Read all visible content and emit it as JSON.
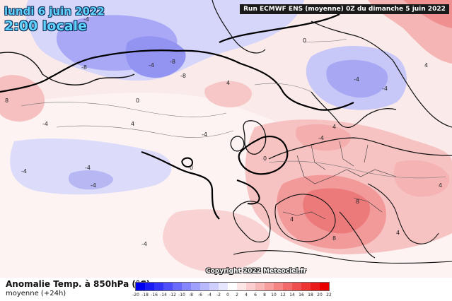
{
  "header": {
    "date": "lundi 6 juin 2022",
    "time": "2:00 locale",
    "run": "Run ECMWF ENS (moyenne) 0Z du dimanche 5 juin 2022"
  },
  "copyright": "Copyright 2022 Meteociel.fr",
  "legend": {
    "title": "Anomalie Temp. à 850hPa (°C)",
    "subtitle": "moyenne  (+24h)",
    "scale_ticks": [
      "-20",
      "-18",
      "-16",
      "-14",
      "-12",
      "-10",
      "-8",
      "-6",
      "-4",
      "-2",
      "0",
      "2",
      "4",
      "6",
      "8",
      "10",
      "12",
      "14",
      "16",
      "18",
      "20",
      "22"
    ],
    "colors": [
      "#0000f0",
      "#1a1af5",
      "#3333f8",
      "#4f4ffa",
      "#6a6afb",
      "#8585fc",
      "#9f9ffc",
      "#b8b8fd",
      "#cfcffd",
      "#e6e6fe",
      "#ffffff",
      "#fde6e6",
      "#fbcfcf",
      "#f9b8b8",
      "#f79f9f",
      "#f58585",
      "#f36a6a",
      "#f04f4f",
      "#ee3333",
      "#eb1a1a",
      "#e80000"
    ]
  },
  "contour_labels": [
    {
      "text": "-4",
      "id": "a"
    },
    {
      "text": "-8",
      "id": "b"
    },
    {
      "text": "-8",
      "id": "c"
    },
    {
      "text": "-8",
      "id": "d"
    },
    {
      "text": "-4",
      "id": "e"
    },
    {
      "text": "0",
      "id": "f"
    },
    {
      "text": "4",
      "id": "g"
    },
    {
      "text": "8",
      "id": "h"
    },
    {
      "text": "-4",
      "id": "i"
    },
    {
      "text": "-4",
      "id": "j"
    },
    {
      "text": "-4",
      "id": "k"
    },
    {
      "text": "0",
      "id": "l"
    },
    {
      "text": "4",
      "id": "m"
    },
    {
      "text": "-4",
      "id": "n"
    },
    {
      "text": "4",
      "id": "o"
    },
    {
      "text": "-4",
      "id": "p"
    },
    {
      "text": "8",
      "id": "q"
    },
    {
      "text": "-4",
      "id": "r"
    },
    {
      "text": "4",
      "id": "s"
    },
    {
      "text": "0",
      "id": "t"
    },
    {
      "text": "-4",
      "id": "u"
    },
    {
      "text": "-4",
      "id": "v"
    },
    {
      "text": "4",
      "id": "w"
    },
    {
      "text": "8",
      "id": "x"
    },
    {
      "text": "-4",
      "id": "y"
    },
    {
      "text": "4",
      "id": "z"
    },
    {
      "text": "0",
      "id": "aa"
    },
    {
      "text": "4",
      "id": "bb"
    }
  ]
}
